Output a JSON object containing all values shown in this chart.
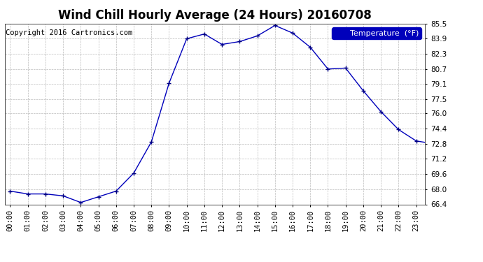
{
  "title": "Wind Chill Hourly Average (24 Hours) 20160708",
  "copyright": "Copyright 2016 Cartronics.com",
  "legend_label": "Temperature  (°F)",
  "x_labels": [
    "00:00",
    "01:00",
    "02:00",
    "03:00",
    "04:00",
    "05:00",
    "06:00",
    "07:00",
    "08:00",
    "09:00",
    "10:00",
    "11:00",
    "12:00",
    "13:00",
    "14:00",
    "15:00",
    "16:00",
    "17:00",
    "18:00",
    "19:00",
    "20:00",
    "21:00",
    "22:00",
    "23:00"
  ],
  "y_values": [
    67.8,
    67.5,
    67.5,
    67.3,
    66.6,
    67.2,
    67.8,
    69.7,
    73.0,
    79.2,
    83.9,
    84.4,
    83.3,
    83.6,
    84.2,
    85.3,
    84.5,
    83.0,
    80.7,
    80.8,
    78.4,
    76.2,
    74.3,
    73.1,
    72.8
  ],
  "x_values": [
    0,
    1,
    2,
    3,
    4,
    5,
    6,
    7,
    8,
    9,
    10,
    11,
    12,
    13,
    14,
    15,
    16,
    17,
    18,
    19,
    20,
    21,
    22,
    23,
    24
  ],
  "ylim_min": 66.4,
  "ylim_max": 85.5,
  "yticks": [
    66.4,
    68.0,
    69.6,
    71.2,
    72.8,
    74.4,
    76.0,
    77.5,
    79.1,
    80.7,
    82.3,
    83.9,
    85.5
  ],
  "line_color": "#0000bb",
  "marker_color": "#000080",
  "bg_color": "#ffffff",
  "plot_bg_color": "#ffffff",
  "grid_color": "#bbbbbb",
  "title_fontsize": 12,
  "tick_fontsize": 7.5,
  "copyright_fontsize": 7.5,
  "legend_bg": "#0000bb",
  "legend_fg": "#ffffff"
}
